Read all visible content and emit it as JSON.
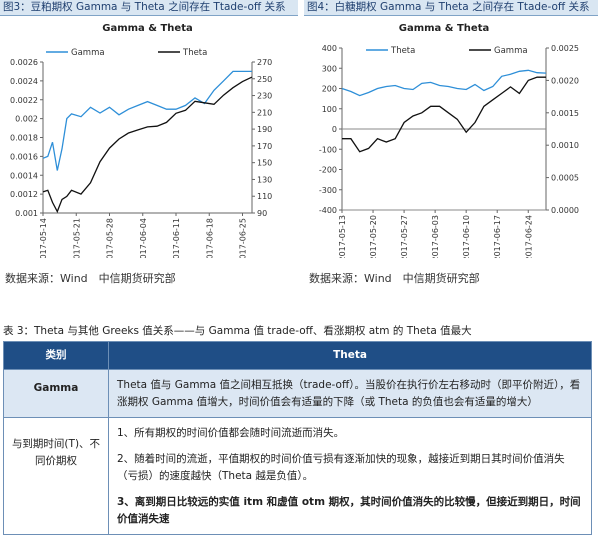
{
  "figures": {
    "left": {
      "caption": "图3：豆粕期权 Gamma 与 Theta 之间存在 Ttade-off 关系",
      "source": "数据来源：Wind　中信期货研究部"
    },
    "right": {
      "caption": "图4：白糖期权 Gamma 与 Theta 之间存在 Ttade-off 关系",
      "source": "数据来源：Wind　中信期货研究部"
    }
  },
  "chart_data": [
    {
      "type": "line",
      "title": "Gamma & Theta",
      "x_ticks": [
        "2017-05-14",
        "2017-05-21",
        "2017-05-28",
        "2017-06-04",
        "2017-06-11",
        "2017-06-18",
        "2017-06-25"
      ],
      "y_left": {
        "min": 0.001,
        "max": 0.0026,
        "ticks": [
          "0.001",
          "0.0012",
          "0.0014",
          "0.0016",
          "0.0018",
          "0.002",
          "0.0022",
          "0.0024",
          "0.0026"
        ]
      },
      "y_right": {
        "min": 90,
        "max": 290,
        "ticks": [
          "90",
          "110",
          "130",
          "150",
          "170",
          "190",
          "210",
          "230",
          "250",
          "270"
        ]
      },
      "series": [
        {
          "name": "Gamma",
          "axis": "left",
          "color": "#2e8fd8",
          "x": [
            "2017-05-14",
            "2017-05-15",
            "2017-05-16",
            "2017-05-17",
            "2017-05-18",
            "2017-05-19",
            "2017-05-20",
            "2017-05-22",
            "2017-05-24",
            "2017-05-26",
            "2017-05-28",
            "2017-05-30",
            "2017-06-01",
            "2017-06-03",
            "2017-06-05",
            "2017-06-07",
            "2017-06-09",
            "2017-06-11",
            "2017-06-13",
            "2017-06-15",
            "2017-06-17",
            "2017-06-19",
            "2017-06-21",
            "2017-06-23",
            "2017-06-25",
            "2017-06-27"
          ],
          "y": [
            0.00158,
            0.0016,
            0.00175,
            0.00145,
            0.00168,
            0.002,
            0.00205,
            0.00202,
            0.00212,
            0.00206,
            0.00212,
            0.00204,
            0.0021,
            0.00214,
            0.00218,
            0.00214,
            0.0021,
            0.0021,
            0.00214,
            0.00222,
            0.00216,
            0.0023,
            0.0024,
            0.0025,
            0.0025,
            0.0025
          ]
        },
        {
          "name": "Theta",
          "axis": "right",
          "color": "#111111",
          "x": [
            "2017-05-14",
            "2017-05-15",
            "2017-05-16",
            "2017-05-17",
            "2017-05-18",
            "2017-05-19",
            "2017-05-20",
            "2017-05-22",
            "2017-05-24",
            "2017-05-26",
            "2017-05-28",
            "2017-05-30",
            "2017-06-01",
            "2017-06-03",
            "2017-06-05",
            "2017-06-07",
            "2017-06-09",
            "2017-06-11",
            "2017-06-13",
            "2017-06-15",
            "2017-06-17",
            "2017-06-19",
            "2017-06-21",
            "2017-06-23",
            "2017-06-25",
            "2017-06-27"
          ],
          "y": [
            118,
            120,
            104,
            92,
            108,
            112,
            120,
            115,
            130,
            158,
            176,
            188,
            196,
            200,
            204,
            205,
            210,
            222,
            226,
            238,
            236,
            234,
            246,
            256,
            264,
            270
          ]
        }
      ]
    },
    {
      "type": "line",
      "title": "Gamma & Theta",
      "x_ticks": [
        "2017-05-13",
        "2017-05-20",
        "2017-05-27",
        "2017-06-03",
        "2017-06-10",
        "2017-06-17",
        "2017-06-24"
      ],
      "y_left": {
        "min": -400,
        "max": 400,
        "ticks": [
          "-400",
          "-300",
          "-200",
          "-100",
          "0",
          "100",
          "200",
          "300",
          "400"
        ]
      },
      "y_right": {
        "min": 0,
        "max": 0.0025,
        "ticks": [
          "0.0000",
          "0.0005",
          "0.0010",
          "0.0015",
          "0.0020",
          "0.0025"
        ]
      },
      "series": [
        {
          "name": "Theta",
          "axis": "left",
          "color": "#2e8fd8",
          "x": [
            "2017-05-13",
            "2017-05-15",
            "2017-05-17",
            "2017-05-19",
            "2017-05-21",
            "2017-05-23",
            "2017-05-25",
            "2017-05-27",
            "2017-05-29",
            "2017-05-31",
            "2017-06-02",
            "2017-06-04",
            "2017-06-06",
            "2017-06-08",
            "2017-06-10",
            "2017-06-12",
            "2017-06-14",
            "2017-06-16",
            "2017-06-18",
            "2017-06-20",
            "2017-06-22",
            "2017-06-24",
            "2017-06-26",
            "2017-06-28"
          ],
          "y": [
            200,
            185,
            165,
            180,
            200,
            210,
            215,
            200,
            195,
            225,
            230,
            215,
            210,
            200,
            195,
            220,
            190,
            210,
            260,
            270,
            285,
            290,
            278,
            276
          ]
        },
        {
          "name": "Gamma",
          "axis": "right",
          "color": "#111111",
          "x": [
            "2017-05-13",
            "2017-05-15",
            "2017-05-17",
            "2017-05-19",
            "2017-05-21",
            "2017-05-23",
            "2017-05-25",
            "2017-05-27",
            "2017-05-29",
            "2017-05-31",
            "2017-06-02",
            "2017-06-04",
            "2017-06-06",
            "2017-06-08",
            "2017-06-10",
            "2017-06-12",
            "2017-06-14",
            "2017-06-16",
            "2017-06-18",
            "2017-06-20",
            "2017-06-22",
            "2017-06-24",
            "2017-06-26",
            "2017-06-28"
          ],
          "y": [
            0.0011,
            0.0011,
            0.0009,
            0.00095,
            0.0011,
            0.00105,
            0.0011,
            0.00135,
            0.00145,
            0.0015,
            0.0016,
            0.0016,
            0.0015,
            0.0014,
            0.0012,
            0.00135,
            0.0016,
            0.0017,
            0.0018,
            0.0019,
            0.0018,
            0.002,
            0.00205,
            0.00205
          ]
        }
      ]
    }
  ],
  "table": {
    "caption": "表 3：Theta 与其他 Greeks 值关系——与 Gamma 值 trade-off、看涨期权 atm 的 Theta 值最大",
    "header": {
      "category": "类别",
      "theta": "Theta"
    },
    "rows": [
      {
        "category": "Gamma",
        "paragraphs": [
          "Theta 值与 Gamma 值之间相互抵换（trade-off）。当股价在执行价左右移动时（即平价附近），看涨期权 Gamma 值增大，时间价值会有适量的下降（或 Theta 的负值也会有适量的增大）"
        ]
      },
      {
        "category": "与到期时间(T)、不同价期权",
        "paragraphs": [
          "1、所有期权的时间价值都会随时间流逝而消失。",
          "2、随着时间的流逝，平值期权的时间价值亏损有逐渐加快的现象，越接近到期日其时间价值消失（亏损）的速度越快（Theta 越是负值）。",
          "3、离到期日比较远的实值 itm 和虚值 otm 期权，其时间价值消失的比较慢，但接近到期日，时间价值消失速"
        ]
      }
    ]
  }
}
